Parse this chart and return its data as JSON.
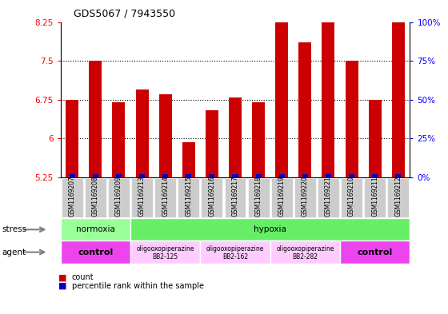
{
  "title": "GDS5067 / 7943550",
  "samples": [
    "GSM1169207",
    "GSM1169208",
    "GSM1169209",
    "GSM1169213",
    "GSM1169214",
    "GSM1169215",
    "GSM1169216",
    "GSM1169217",
    "GSM1169218",
    "GSM1169219",
    "GSM1169220",
    "GSM1169221",
    "GSM1169210",
    "GSM1169211",
    "GSM1169212"
  ],
  "counts": [
    6.75,
    7.5,
    6.7,
    6.95,
    6.85,
    5.93,
    6.55,
    6.8,
    6.7,
    8.3,
    7.85,
    8.3,
    7.5,
    6.75,
    8.35
  ],
  "ymin": 5.25,
  "ymax": 8.25,
  "yticks": [
    5.25,
    6.0,
    6.75,
    7.5,
    8.25
  ],
  "ytick_labels": [
    "5.25",
    "6",
    "6.75",
    "7.5",
    "8.25"
  ],
  "right_ytick_labels": [
    "0%",
    "25%",
    "50%",
    "75%",
    "100%"
  ],
  "bar_color": "#cc0000",
  "percentile_color": "#0000cc",
  "bar_bottom": 5.25,
  "normoxia_color": "#99ff99",
  "hypoxia_color": "#66ee66",
  "control_color": "#ee44ee",
  "oligo_color": "#ffccff",
  "legend_count_label": "count",
  "legend_percentile_label": "percentile rank within the sample",
  "bg_color": "#ffffff"
}
